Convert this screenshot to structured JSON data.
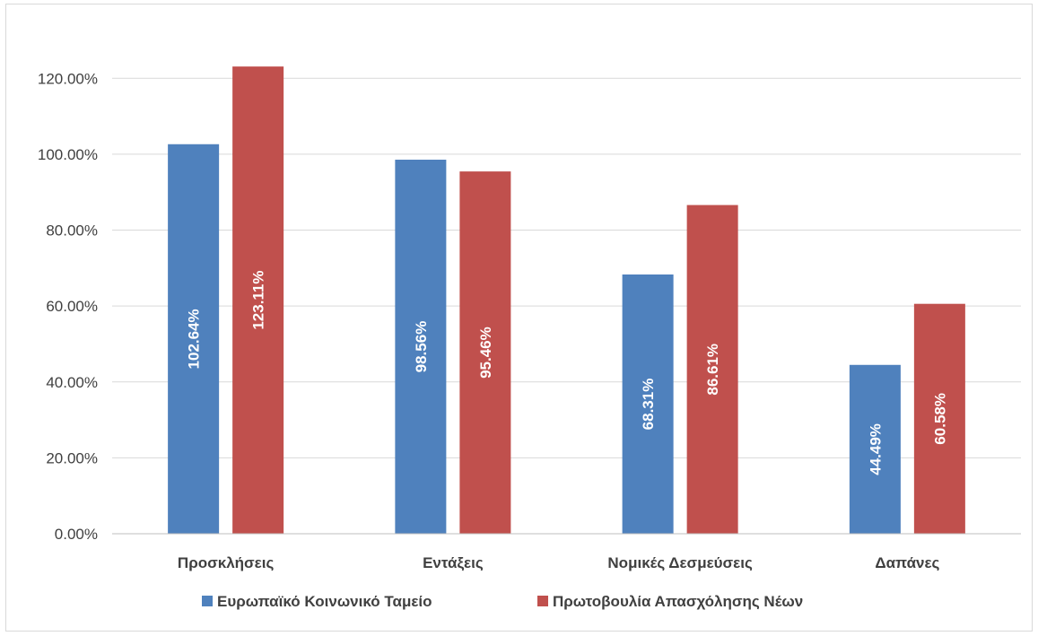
{
  "chart_data": {
    "type": "bar",
    "title": "",
    "xlabel": "",
    "ylabel": "",
    "categories": [
      "Προσκλήσεις",
      "Εντάξεις",
      "Νομικές Δεσμεύσεις",
      "Δαπάνες"
    ],
    "series": [
      {
        "name": "Ευρωπαϊκό Κοινωνικό Ταμείο",
        "values": [
          102.64,
          98.56,
          68.31,
          44.49
        ],
        "labels": [
          "102.64%",
          "98.56%",
          "68.31%",
          "44.49%"
        ],
        "color": "#4f81bd"
      },
      {
        "name": "Πρωτοβουλία Απασχόλησης Νέων",
        "values": [
          123.11,
          95.46,
          86.61,
          60.58
        ],
        "labels": [
          "123.11%",
          "95.46%",
          "86.61%",
          "60.58%"
        ],
        "color": "#c0504d"
      }
    ],
    "ylim": [
      0,
      130
    ],
    "yticks": [
      0,
      20,
      40,
      60,
      80,
      100,
      120
    ],
    "ytick_labels": [
      "0.00%",
      "20.00%",
      "40.00%",
      "60.00%",
      "80.00%",
      "100.00%",
      "120.00%"
    ],
    "grid": true,
    "legend": "bottom",
    "data_labels": "inside-rotated"
  }
}
